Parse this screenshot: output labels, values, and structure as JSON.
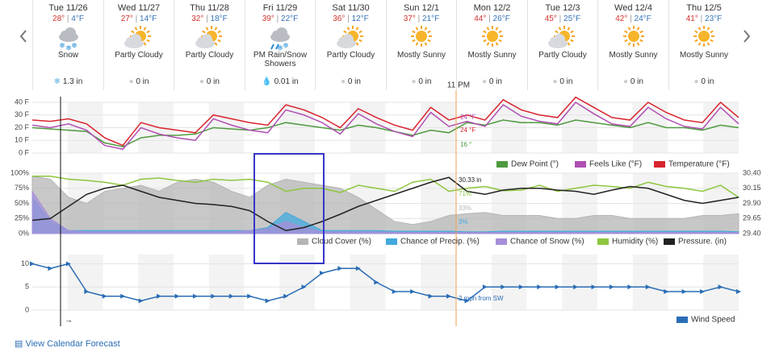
{
  "days": [
    {
      "date": "Tue 11/26",
      "hi": "28°",
      "lo": "4°F",
      "condition": "Snow",
      "precip": "1.3 in"
    },
    {
      "date": "Wed 11/27",
      "hi": "27°",
      "lo": "14°F",
      "condition": "Partly Cloudy",
      "precip": "0 in"
    },
    {
      "date": "Thu 11/28",
      "hi": "32°",
      "lo": "18°F",
      "condition": "Partly Cloudy",
      "precip": "0 in"
    },
    {
      "date": "Fri 11/29",
      "hi": "39°",
      "lo": "22°F",
      "condition": "PM Rain/Snow Showers",
      "precip": "0.01 in"
    },
    {
      "date": "Sat 11/30",
      "hi": "36°",
      "lo": "12°F",
      "condition": "Partly Cloudy",
      "precip": "0 in"
    },
    {
      "date": "Sun 12/1",
      "hi": "37°",
      "lo": "21°F",
      "condition": "Mostly Sunny",
      "precip": "0 in"
    },
    {
      "date": "Mon 12/2",
      "hi": "44°",
      "lo": "26°F",
      "condition": "Mostly Sunny",
      "precip": "0 in"
    },
    {
      "date": "Tue 12/3",
      "hi": "45°",
      "lo": "25°F",
      "condition": "Partly Cloudy",
      "precip": "0 in"
    },
    {
      "date": "Wed 12/4",
      "hi": "42°",
      "lo": "24°F",
      "condition": "Mostly Sunny",
      "precip": "0 in"
    },
    {
      "date": "Thu 12/5",
      "hi": "41°",
      "lo": "23°F",
      "condition": "Mostly Sunny",
      "precip": "0 in"
    }
  ],
  "marker_label": "11 PM",
  "link": "View Calendar Forecast",
  "chart_data": [
    {
      "type": "line",
      "ylim": [
        0,
        40
      ],
      "yticks": [
        {
          "value": 0,
          "label": "0 F"
        },
        {
          "value": 10,
          "label": "10 F"
        },
        {
          "value": 20,
          "label": "20 F"
        },
        {
          "value": 30,
          "label": "30 F"
        },
        {
          "value": 40,
          "label": "40 F"
        }
      ],
      "grid": true,
      "series": [
        {
          "name": "Dew Point (°)",
          "color": "#4e9a3f",
          "type": "line",
          "values": [
            20,
            19,
            18,
            17,
            8,
            5,
            12,
            14,
            14,
            15,
            20,
            19,
            18,
            20,
            24,
            22,
            20,
            18,
            22,
            20,
            17,
            14,
            18,
            16,
            24,
            22,
            26,
            24,
            24,
            22,
            26,
            24,
            22,
            20,
            24,
            20,
            20,
            18,
            22,
            20
          ]
        },
        {
          "name": "Feels Like (°F)",
          "color": "#b04fb3",
          "type": "line",
          "values": [
            22,
            20,
            23,
            18,
            6,
            3,
            20,
            15,
            12,
            10,
            27,
            22,
            18,
            16,
            34,
            30,
            24,
            15,
            31,
            23,
            17,
            13,
            32,
            21,
            25,
            21,
            38,
            29,
            25,
            23,
            40,
            31,
            23,
            21,
            36,
            27,
            21,
            19,
            36,
            23
          ]
        },
        {
          "name": "Temperature (°F)",
          "color": "#d9232e",
          "type": "line",
          "values": [
            26,
            25,
            27,
            23,
            12,
            6,
            24,
            20,
            18,
            16,
            30,
            27,
            24,
            22,
            38,
            34,
            28,
            20,
            35,
            28,
            22,
            18,
            36,
            26,
            30,
            26,
            42,
            34,
            30,
            28,
            44,
            36,
            28,
            26,
            40,
            32,
            26,
            24,
            40,
            28
          ]
        }
      ],
      "annotations": [
        "24 °F",
        "24 °F",
        "16 °"
      ]
    },
    {
      "type": "line",
      "ylim": [
        0,
        100
      ],
      "yticks": [
        {
          "value": 0,
          "label": "0%"
        },
        {
          "value": 25,
          "label": "25%"
        },
        {
          "value": 50,
          "label": "50%"
        },
        {
          "value": 75,
          "label": "75%"
        },
        {
          "value": 100,
          "label": "100%"
        }
      ],
      "y2lim": [
        29.4,
        30.4
      ],
      "y2ticks": [
        {
          "value": 29.4,
          "label": "29.40"
        },
        {
          "value": 29.65,
          "label": "29.65"
        },
        {
          "value": 29.9,
          "label": "29.90"
        },
        {
          "value": 30.15,
          "label": "30.15"
        },
        {
          "value": 30.4,
          "label": "30.40"
        }
      ],
      "grid": true,
      "series": [
        {
          "name": "Cloud Cover (%)",
          "color": "#b5b5b5",
          "type": "area",
          "values": [
            95,
            90,
            60,
            50,
            70,
            75,
            80,
            70,
            85,
            90,
            85,
            70,
            60,
            80,
            90,
            85,
            80,
            75,
            60,
            40,
            20,
            15,
            20,
            30,
            33,
            35,
            30,
            30,
            30,
            25,
            25,
            30,
            30,
            25,
            25,
            25,
            25,
            30,
            30,
            33
          ]
        },
        {
          "name": "Chance of Precip. (%)",
          "color": "#41a9dd",
          "type": "area",
          "values": [
            60,
            20,
            5,
            5,
            5,
            5,
            5,
            5,
            5,
            5,
            5,
            5,
            5,
            10,
            35,
            20,
            5,
            5,
            5,
            5,
            4,
            4,
            4,
            4,
            3,
            3,
            4,
            4,
            4,
            4,
            4,
            4,
            4,
            4,
            4,
            4,
            4,
            4,
            4,
            3
          ]
        },
        {
          "name": "Chance of Snow (%)",
          "color": "#a58fd8",
          "type": "area",
          "values": [
            70,
            25,
            5,
            3,
            3,
            3,
            3,
            3,
            3,
            3,
            3,
            3,
            5,
            8,
            20,
            10,
            3,
            3,
            3,
            3,
            2,
            2,
            2,
            2,
            2,
            2,
            2,
            2,
            2,
            2,
            2,
            2,
            2,
            2,
            2,
            2,
            2,
            2,
            2,
            2
          ]
        },
        {
          "name": "Humidity (%)",
          "color": "#8dc63f",
          "type": "line",
          "values": [
            95,
            95,
            90,
            88,
            85,
            80,
            90,
            92,
            88,
            85,
            90,
            88,
            90,
            85,
            70,
            75,
            75,
            68,
            80,
            75,
            70,
            85,
            90,
            70,
            75,
            78,
            71,
            72,
            80,
            70,
            75,
            80,
            78,
            75,
            85,
            78,
            75,
            70,
            80,
            60
          ]
        },
        {
          "name": "Pressure. (in)",
          "color": "#222222",
          "type": "line",
          "axis": "y2",
          "values": [
            29.62,
            29.65,
            29.85,
            30.05,
            30.15,
            30.2,
            30.1,
            30.0,
            29.95,
            29.9,
            29.88,
            29.85,
            29.78,
            29.6,
            29.45,
            29.5,
            29.6,
            29.72,
            29.85,
            29.95,
            30.05,
            30.15,
            30.25,
            30.33,
            30.1,
            30.05,
            30.12,
            30.15,
            30.15,
            30.12,
            30.1,
            30.05,
            30.12,
            30.18,
            30.15,
            30.05,
            29.95,
            29.9,
            29.95,
            30.0
          ]
        }
      ],
      "annotations": [
        "30.33 in",
        "71%",
        "33%",
        "3%"
      ]
    },
    {
      "type": "line",
      "ylim": [
        0,
        12
      ],
      "yticks": [
        0,
        5,
        10
      ],
      "grid": true,
      "series": [
        {
          "name": "Wind Speed",
          "color": "#2a6db5",
          "type": "line",
          "values": [
            10,
            9,
            10,
            4,
            3,
            3,
            2,
            3,
            3,
            3,
            3,
            3,
            3,
            2,
            3,
            5,
            8,
            9,
            9,
            6,
            4,
            4,
            3,
            3,
            2,
            5,
            5,
            5,
            5,
            5,
            5,
            5,
            5,
            5,
            5,
            4,
            4,
            4,
            5,
            4
          ]
        }
      ],
      "annotations": [
        "2 mph from SW"
      ]
    }
  ]
}
